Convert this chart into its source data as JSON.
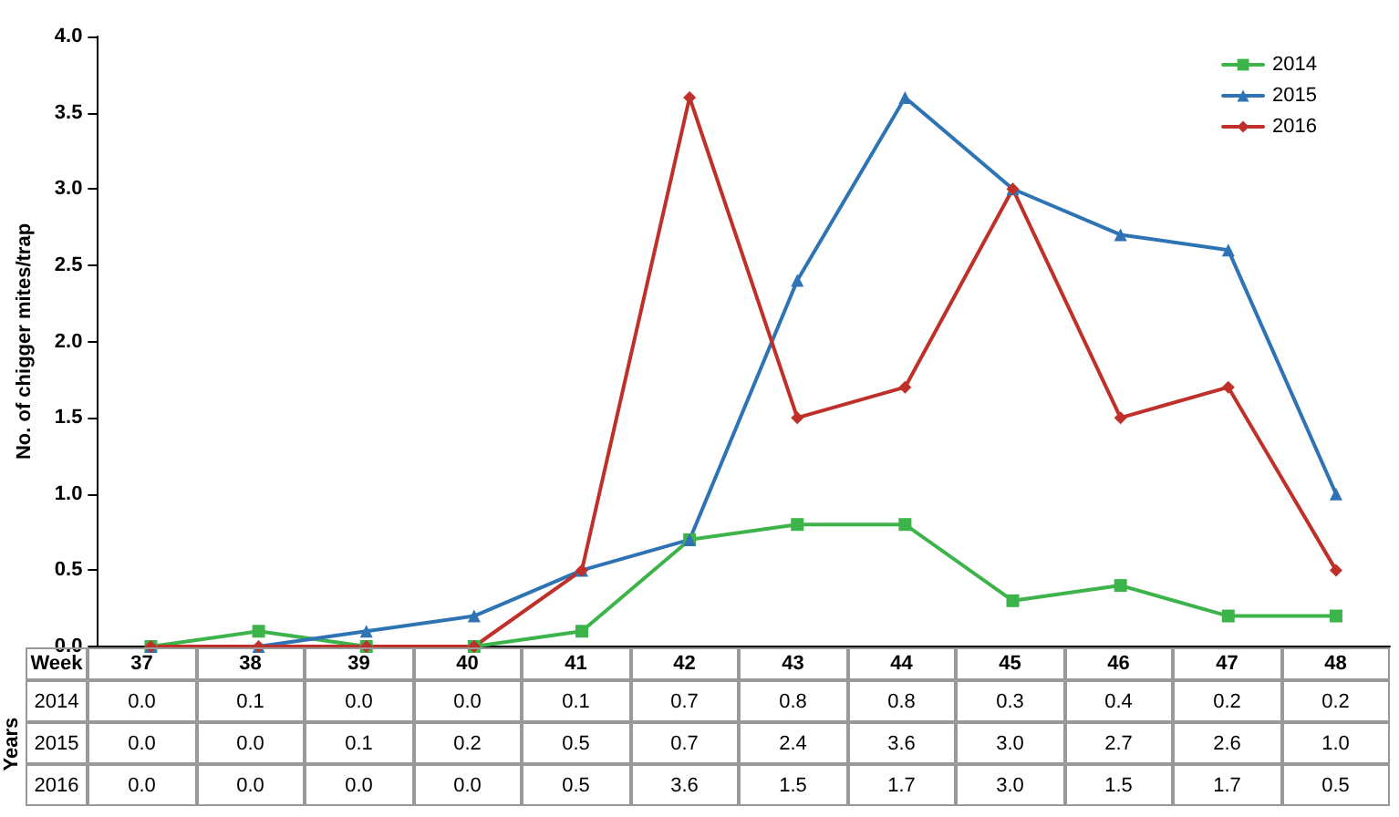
{
  "chart_data": {
    "type": "line",
    "ylabel": "No. of chigger mites/trap",
    "xlabel": "Week",
    "annotations": [
      "Years"
    ],
    "categories": [
      "37",
      "38",
      "39",
      "40",
      "41",
      "42",
      "43",
      "44",
      "45",
      "46",
      "47",
      "48"
    ],
    "series": [
      {
        "name": "2014",
        "color": "#3cb44a",
        "marker": "square",
        "values": [
          0.0,
          0.1,
          0.0,
          0.0,
          0.1,
          0.7,
          0.8,
          0.8,
          0.3,
          0.4,
          0.2,
          0.2
        ],
        "value_labels": [
          "0.0",
          "0.1",
          "0.0",
          "0.0",
          "0.1",
          "0.7",
          "0.8",
          "0.8",
          "0.3",
          "0.4",
          "0.2",
          "0.2"
        ]
      },
      {
        "name": "2015",
        "color": "#2e74b5",
        "marker": "triangle",
        "values": [
          0.0,
          0.0,
          0.1,
          0.2,
          0.5,
          0.7,
          2.4,
          3.6,
          3.0,
          2.7,
          2.6,
          1.0
        ],
        "value_labels": [
          "0.0",
          "0.0",
          "0.1",
          "0.2",
          "0.5",
          "0.7",
          "2.4",
          "3.6",
          "3.0",
          "2.7",
          "2.6",
          "1.0"
        ]
      },
      {
        "name": "2016",
        "color": "#c0302a",
        "marker": "diamond",
        "values": [
          0.0,
          0.0,
          0.0,
          0.0,
          0.5,
          3.6,
          1.5,
          1.7,
          3.0,
          1.5,
          1.7,
          0.5
        ],
        "value_labels": [
          "0.0",
          "0.0",
          "0.0",
          "0.0",
          "0.5",
          "3.6",
          "1.5",
          "1.7",
          "3.0",
          "1.5",
          "1.7",
          "0.5"
        ]
      }
    ],
    "ylim": [
      0,
      4
    ],
    "yticks": [
      {
        "value": 0,
        "label": "0.0"
      },
      {
        "value": 0.5,
        "label": "0.5"
      },
      {
        "value": 1,
        "label": "1.0"
      },
      {
        "value": 1.5,
        "label": "1.5"
      },
      {
        "value": 2,
        "label": "2.0"
      },
      {
        "value": 2.5,
        "label": "2.5"
      },
      {
        "value": 3,
        "label": "3.0"
      },
      {
        "value": 3.5,
        "label": "3.5"
      },
      {
        "value": 4,
        "label": "4.0"
      }
    ],
    "grid": false,
    "legend": "top right",
    "line_style": "solid"
  }
}
